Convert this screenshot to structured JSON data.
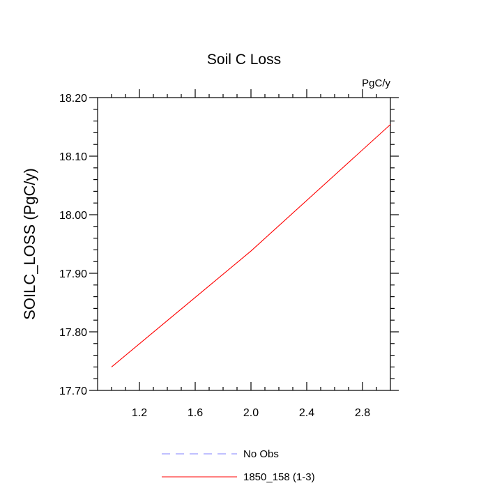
{
  "chart_data": {
    "type": "line",
    "title": "Soil C Loss",
    "units_label": "PgC/y",
    "xlabel": "",
    "ylabel": "SOILC_LOSS  (PgC/y)",
    "xlim": [
      0.9,
      3.0
    ],
    "ylim": [
      17.7,
      18.2
    ],
    "x_ticks": [
      1.2,
      1.6,
      2.0,
      2.4,
      2.8
    ],
    "x_tick_labels": [
      "1.2",
      "1.6",
      "2.0",
      "2.4",
      "2.8"
    ],
    "y_ticks": [
      17.7,
      17.8,
      17.9,
      18.0,
      18.1,
      18.2
    ],
    "y_tick_labels": [
      "17.70",
      "17.80",
      "17.90",
      "18.00",
      "18.10",
      "18.20"
    ],
    "grid": false,
    "legend_position": "bottom-center",
    "series": [
      {
        "name": "No Obs",
        "color": "#8080ff",
        "dash": "dashed",
        "x": [],
        "y": []
      },
      {
        "name": "1850_158 (1-3)",
        "color": "#ff0000",
        "dash": "solid",
        "x": [
          1.0,
          2.0,
          3.0
        ],
        "y": [
          17.74,
          17.938,
          18.154
        ]
      }
    ]
  }
}
